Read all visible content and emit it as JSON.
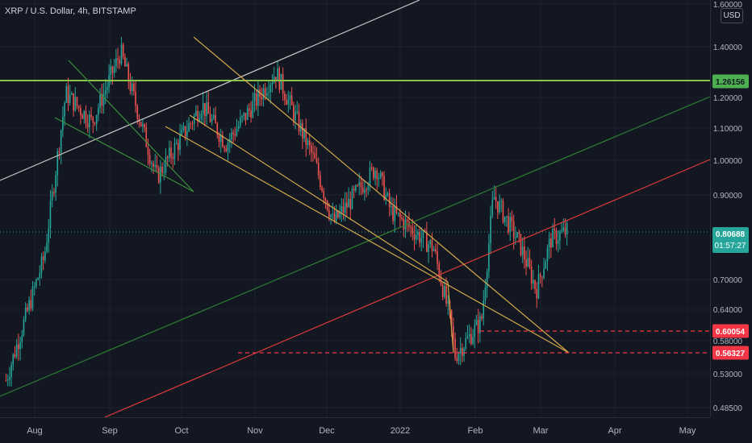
{
  "chart_title": "XRP / U.S. Dollar, 4h, BITSTAMP",
  "currency": "USD",
  "colors": {
    "background": "#131722",
    "up": "#26a69a",
    "down": "#ef5350",
    "trend_yellow": "#d4a84b",
    "trend_green": "#2e7d32",
    "trend_red": "#e03b3b",
    "trend_white": "#c8c8c8",
    "horizontal_green": "#8bc34a",
    "support_dashed": "#f23645",
    "current_price_dotted": "#26a69a"
  },
  "chart_data": {
    "type": "candlestick",
    "symbol": "XRP / U.S. Dollar",
    "interval": "4h",
    "exchange": "BITSTAMP",
    "y_scale": "log",
    "ylim": [
      0.45,
      1.6
    ],
    "y_ticks": [
      "1.60000",
      "1.40000",
      "1.20000",
      "1.10000",
      "1.00000",
      "0.90000",
      "0.70000",
      "0.64000",
      "0.58000",
      "0.53000",
      "0.48500"
    ],
    "x_ticks": [
      "Aug",
      "Sep",
      "Oct",
      "Nov",
      "Dec",
      "2022",
      "Feb",
      "Mar",
      "Apr",
      "May"
    ],
    "price_labels": [
      {
        "value": "1.26156",
        "color": "#4caf50",
        "text_color": "#131722"
      },
      {
        "value": "0.80688",
        "sub": "01:57:27",
        "color": "#26a69a",
        "text_color": "#ffffff"
      },
      {
        "value": "0.60054",
        "color": "#f23645",
        "text_color": "#ffffff"
      },
      {
        "value": "0.56327",
        "color": "#f23645",
        "text_color": "#ffffff"
      }
    ],
    "key_prices": [
      {
        "date": "2021-07-20",
        "close": 0.52
      },
      {
        "date": "2021-08-05",
        "close": 0.75
      },
      {
        "date": "2021-08-14",
        "close": 1.22
      },
      {
        "date": "2021-08-25",
        "close": 1.12
      },
      {
        "date": "2021-09-06",
        "close": 1.38
      },
      {
        "date": "2021-09-21",
        "close": 0.95
      },
      {
        "date": "2021-10-10",
        "close": 1.18
      },
      {
        "date": "2021-10-20",
        "close": 1.05
      },
      {
        "date": "2021-11-10",
        "close": 1.3
      },
      {
        "date": "2021-11-26",
        "close": 1.0
      },
      {
        "date": "2021-12-04",
        "close": 0.83
      },
      {
        "date": "2021-12-22",
        "close": 0.98
      },
      {
        "date": "2021-12-28",
        "close": 0.86
      },
      {
        "date": "2022-01-15",
        "close": 0.77
      },
      {
        "date": "2022-01-22",
        "close": 0.62
      },
      {
        "date": "2022-01-24",
        "close": 0.56
      },
      {
        "date": "2022-02-04",
        "close": 0.62
      },
      {
        "date": "2022-02-09",
        "close": 0.9
      },
      {
        "date": "2022-02-20",
        "close": 0.78
      },
      {
        "date": "2022-02-27",
        "close": 0.68
      },
      {
        "date": "2022-03-05",
        "close": 0.79
      },
      {
        "date": "2022-03-12",
        "close": 0.81
      }
    ],
    "drawings": {
      "horizontal_levels": [
        1.26156,
        0.60054,
        0.56327
      ],
      "trend_lines": [
        "white rising line",
        "yellow descending wedge lines",
        "green rising channel line",
        "red rising support line"
      ]
    }
  }
}
